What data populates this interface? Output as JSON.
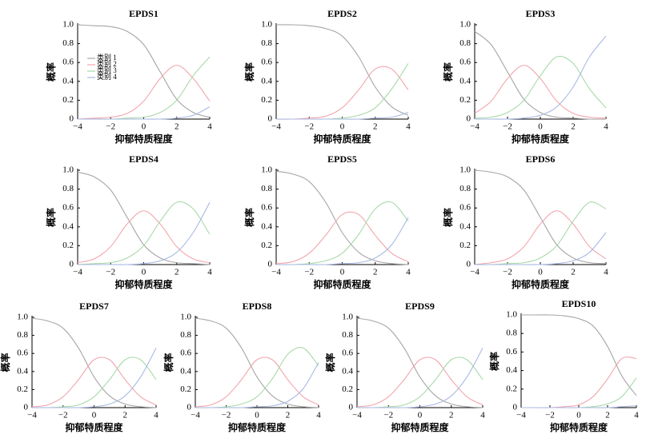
{
  "chart_data": [
    {
      "type": "line",
      "title": "EPDS1",
      "xlabel": "抑郁特质程度",
      "ylabel": "概率",
      "x": [
        -4,
        -3,
        -2,
        -1,
        0,
        1,
        2,
        3,
        4
      ],
      "xlim": [
        -4,
        4
      ],
      "ylim": [
        0,
        1
      ],
      "xticks": [
        {
          "value": -4,
          "label": "−4"
        },
        {
          "value": -2,
          "label": "−2"
        },
        0,
        2,
        4
      ],
      "yticks": [
        0,
        0.2,
        0.4,
        0.6,
        0.8,
        {
          "value": 1,
          "label": "1.0"
        }
      ],
      "series": [
        {
          "name": "类别 1",
          "color": "#a6a6a6",
          "values": [
            1,
            0.99,
            0.98,
            0.93,
            0.79,
            0.5,
            0.21,
            0.07,
            0.02
          ]
        },
        {
          "name": "类别 2",
          "color": "#f2a5ad",
          "values": [
            0,
            0.01,
            0.02,
            0.06,
            0.19,
            0.43,
            0.57,
            0.43,
            0.19
          ]
        },
        {
          "name": "类别 3",
          "color": "#a9d9a9",
          "values": [
            0,
            0,
            0,
            0.01,
            0.02,
            0.07,
            0.2,
            0.46,
            0.66
          ]
        },
        {
          "name": "类别 4",
          "color": "#a9b9e3",
          "values": [
            0,
            0,
            0,
            0,
            0,
            0,
            0.01,
            0.04,
            0.13
          ]
        }
      ]
    },
    {
      "type": "line",
      "title": "EPDS2",
      "xlabel": "抑郁特质程度",
      "ylabel": "概率",
      "x": [
        -4,
        -3,
        -2,
        -1,
        0,
        1,
        2,
        3,
        4
      ],
      "xlim": [
        -4,
        4
      ],
      "ylim": [
        0,
        1
      ],
      "xticks": [
        {
          "value": -4,
          "label": "−4"
        },
        {
          "value": -2,
          "label": "−2"
        },
        0,
        2,
        4
      ],
      "yticks": [
        0,
        0.2,
        0.4,
        0.6,
        0.8,
        {
          "value": 1,
          "label": "1.0"
        }
      ],
      "series": [
        {
          "color": "#a6a6a6",
          "values": [
            1,
            1,
            0.99,
            0.96,
            0.88,
            0.66,
            0.34,
            0.13,
            0.04
          ]
        },
        {
          "color": "#f2a5ad",
          "values": [
            0,
            0,
            0.01,
            0.03,
            0.12,
            0.31,
            0.53,
            0.53,
            0.31
          ]
        },
        {
          "color": "#a9d9a9",
          "values": [
            0,
            0,
            0,
            0,
            0.01,
            0.04,
            0.12,
            0.32,
            0.59
          ]
        },
        {
          "color": "#a9b9e3",
          "values": [
            0,
            0,
            0,
            0,
            0,
            0,
            0.01,
            0.02,
            0.07
          ]
        }
      ]
    },
    {
      "type": "line",
      "title": "EPDS3",
      "xlabel": "抑郁特质程度",
      "ylabel": "概率",
      "x": [
        -4,
        -3,
        -2,
        -1,
        0,
        1,
        2,
        3,
        4
      ],
      "xlim": [
        -4,
        4
      ],
      "ylim": [
        0,
        1
      ],
      "xticks": [
        {
          "value": -4,
          "label": "−4"
        },
        {
          "value": -2,
          "label": "−2"
        },
        0,
        2,
        4
      ],
      "yticks": [
        0,
        0.2,
        0.4,
        0.6,
        0.8,
        {
          "value": 1,
          "label": "1.0"
        }
      ],
      "series": [
        {
          "color": "#a6a6a6",
          "values": [
            0.93,
            0.79,
            0.5,
            0.21,
            0.07,
            0.02,
            0.01,
            0,
            0
          ]
        },
        {
          "color": "#f2a5ad",
          "values": [
            0.06,
            0.19,
            0.43,
            0.57,
            0.43,
            0.19,
            0.06,
            0.02,
            0.01
          ]
        },
        {
          "color": "#a9d9a9",
          "values": [
            0.01,
            0.02,
            0.07,
            0.2,
            0.46,
            0.66,
            0.59,
            0.32,
            0.12
          ]
        },
        {
          "color": "#a9b9e3",
          "values": [
            0,
            0,
            0,
            0.01,
            0.04,
            0.13,
            0.34,
            0.66,
            0.88
          ]
        }
      ]
    },
    {
      "type": "line",
      "title": "EPDS4",
      "xlabel": "抑郁特质程度",
      "ylabel": "概率",
      "x": [
        -4,
        -3,
        -2,
        -1,
        0,
        1,
        2,
        3,
        4
      ],
      "xlim": [
        -4,
        4
      ],
      "ylim": [
        0,
        1
      ],
      "xticks": [
        {
          "value": -4,
          "label": "−4"
        },
        {
          "value": -2,
          "label": "−2"
        },
        0,
        2,
        4
      ],
      "yticks": [
        0,
        0.2,
        0.4,
        0.6,
        0.8,
        {
          "value": 1,
          "label": "1.0"
        }
      ],
      "series": [
        {
          "color": "#a6a6a6",
          "values": [
            0.98,
            0.93,
            0.79,
            0.5,
            0.21,
            0.07,
            0.02,
            0.01,
            0
          ]
        },
        {
          "color": "#f2a5ad",
          "values": [
            0.02,
            0.06,
            0.19,
            0.43,
            0.57,
            0.43,
            0.19,
            0.06,
            0.02
          ]
        },
        {
          "color": "#a9d9a9",
          "values": [
            0,
            0.01,
            0.02,
            0.07,
            0.2,
            0.46,
            0.66,
            0.59,
            0.32
          ]
        },
        {
          "color": "#a9b9e3",
          "values": [
            0,
            0,
            0,
            0,
            0.01,
            0.04,
            0.13,
            0.34,
            0.66
          ]
        }
      ]
    },
    {
      "type": "line",
      "title": "EPDS5",
      "xlabel": "抑郁特质程度",
      "ylabel": "概率",
      "x": [
        -4,
        -3,
        -2,
        -1,
        0,
        1,
        2,
        3,
        4
      ],
      "xlim": [
        -4,
        4
      ],
      "ylim": [
        0,
        1
      ],
      "xticks": [
        {
          "value": -4,
          "label": "−4"
        },
        {
          "value": -2,
          "label": "−2"
        },
        0,
        2,
        4
      ],
      "yticks": [
        0,
        0.2,
        0.4,
        0.6,
        0.8,
        {
          "value": 1,
          "label": "1.0"
        }
      ],
      "series": [
        {
          "color": "#a6a6a6",
          "values": [
            0.99,
            0.96,
            0.88,
            0.66,
            0.34,
            0.13,
            0.04,
            0.01,
            0
          ]
        },
        {
          "color": "#f2a5ad",
          "values": [
            0.01,
            0.03,
            0.12,
            0.31,
            0.53,
            0.53,
            0.31,
            0.12,
            0.03
          ]
        },
        {
          "color": "#a9d9a9",
          "values": [
            0,
            0,
            0.01,
            0.04,
            0.12,
            0.32,
            0.59,
            0.66,
            0.46
          ]
        },
        {
          "color": "#a9b9e3",
          "values": [
            0,
            0,
            0,
            0,
            0.01,
            0.02,
            0.07,
            0.21,
            0.5
          ]
        }
      ]
    },
    {
      "type": "line",
      "title": "EPDS6",
      "xlabel": "抑郁特质程度",
      "ylabel": "概率",
      "x": [
        -4,
        -3,
        -2,
        -1,
        0,
        1,
        2,
        3,
        4
      ],
      "xlim": [
        -4,
        4
      ],
      "ylim": [
        0,
        1
      ],
      "xticks": [
        {
          "value": -4,
          "label": "−4"
        },
        {
          "value": -2,
          "label": "−2"
        },
        0,
        2,
        4
      ],
      "yticks": [
        0,
        0.2,
        0.4,
        0.6,
        0.8,
        {
          "value": 1,
          "label": "1.0"
        }
      ],
      "series": [
        {
          "color": "#a6a6a6",
          "values": [
            1,
            0.98,
            0.93,
            0.79,
            0.5,
            0.21,
            0.07,
            0.02,
            0.01
          ]
        },
        {
          "color": "#f2a5ad",
          "values": [
            0,
            0.02,
            0.06,
            0.19,
            0.43,
            0.57,
            0.43,
            0.19,
            0.06
          ]
        },
        {
          "color": "#a9d9a9",
          "values": [
            0,
            0,
            0.01,
            0.02,
            0.07,
            0.2,
            0.46,
            0.66,
            0.59
          ]
        },
        {
          "color": "#a9b9e3",
          "values": [
            0,
            0,
            0,
            0,
            0,
            0.01,
            0.04,
            0.13,
            0.34
          ]
        }
      ]
    },
    {
      "type": "line",
      "title": "EPDS7",
      "xlabel": "抑郁特质程度",
      "ylabel": "概率",
      "x": [
        -4,
        -3,
        -2,
        -1,
        0,
        1,
        2,
        3,
        4
      ],
      "xlim": [
        -4,
        4
      ],
      "ylim": [
        0,
        1
      ],
      "xticks": [
        {
          "value": -4,
          "label": "−4"
        },
        {
          "value": -2,
          "label": "−2"
        },
        0,
        2,
        4
      ],
      "yticks": [
        0,
        0.2,
        0.4,
        0.6,
        0.8,
        {
          "value": 1,
          "label": "1.0"
        }
      ],
      "series": [
        {
          "color": "#a6a6a6",
          "values": [
            0.99,
            0.96,
            0.88,
            0.66,
            0.34,
            0.13,
            0.04,
            0.01,
            0
          ]
        },
        {
          "color": "#f2a5ad",
          "values": [
            0.01,
            0.03,
            0.12,
            0.31,
            0.53,
            0.53,
            0.31,
            0.12,
            0.03
          ]
        },
        {
          "color": "#a9d9a9",
          "values": [
            0,
            0,
            0.01,
            0.03,
            0.12,
            0.31,
            0.53,
            0.53,
            0.31
          ]
        },
        {
          "color": "#a9b9e3",
          "values": [
            0,
            0,
            0,
            0,
            0.01,
            0.04,
            0.13,
            0.34,
            0.66
          ]
        }
      ]
    },
    {
      "type": "line",
      "title": "EPDS8",
      "xlabel": "抑郁特质程度",
      "ylabel": "概率",
      "x": [
        -4,
        -3,
        -2,
        -1,
        0,
        1,
        2,
        3,
        4
      ],
      "xlim": [
        -4,
        4
      ],
      "ylim": [
        0,
        1
      ],
      "xticks": [
        {
          "value": -4,
          "label": "−4"
        },
        {
          "value": -2,
          "label": "−2"
        },
        0,
        2,
        4
      ],
      "yticks": [
        0,
        0.2,
        0.4,
        0.6,
        0.8,
        {
          "value": 1,
          "label": "1.0"
        }
      ],
      "series": [
        {
          "color": "#a6a6a6",
          "values": [
            0.99,
            0.96,
            0.88,
            0.66,
            0.34,
            0.13,
            0.04,
            0.01,
            0
          ]
        },
        {
          "color": "#f2a5ad",
          "values": [
            0.01,
            0.03,
            0.12,
            0.31,
            0.53,
            0.53,
            0.31,
            0.12,
            0.03
          ]
        },
        {
          "color": "#a9d9a9",
          "values": [
            0,
            0,
            0.01,
            0.04,
            0.12,
            0.32,
            0.59,
            0.66,
            0.46
          ]
        },
        {
          "color": "#a9b9e3",
          "values": [
            0,
            0,
            0,
            0,
            0.01,
            0.02,
            0.07,
            0.21,
            0.5
          ]
        }
      ]
    },
    {
      "type": "line",
      "title": "EPDS9",
      "xlabel": "抑郁特质程度",
      "ylabel": "概率",
      "x": [
        -4,
        -3,
        -2,
        -1,
        0,
        1,
        2,
        3,
        4
      ],
      "xlim": [
        -4,
        4
      ],
      "ylim": [
        0,
        1
      ],
      "xticks": [
        {
          "value": -4,
          "label": "−4"
        },
        {
          "value": -2,
          "label": "−2"
        },
        0,
        2,
        4
      ],
      "yticks": [
        0,
        0.2,
        0.4,
        0.6,
        0.8,
        {
          "value": 1,
          "label": "1.0"
        }
      ],
      "series": [
        {
          "color": "#a6a6a6",
          "values": [
            0.99,
            0.96,
            0.88,
            0.66,
            0.34,
            0.13,
            0.04,
            0.01,
            0
          ]
        },
        {
          "color": "#f2a5ad",
          "values": [
            0.01,
            0.03,
            0.12,
            0.31,
            0.53,
            0.53,
            0.31,
            0.12,
            0.03
          ]
        },
        {
          "color": "#a9d9a9",
          "values": [
            0,
            0,
            0.01,
            0.03,
            0.12,
            0.31,
            0.53,
            0.53,
            0.31
          ]
        },
        {
          "color": "#a9b9e3",
          "values": [
            0,
            0,
            0,
            0,
            0.01,
            0.04,
            0.13,
            0.34,
            0.66
          ]
        }
      ]
    },
    {
      "type": "line",
      "title": "EPDS10",
      "xlabel": "抑郁特质程度",
      "ylabel": "概率",
      "x": [
        -4,
        -3,
        -2,
        -1,
        0,
        1,
        2,
        3,
        4
      ],
      "xlim": [
        -4,
        4
      ],
      "ylim": [
        0,
        1
      ],
      "xticks": [
        {
          "value": -4,
          "label": "−4"
        },
        {
          "value": -2,
          "label": "−2"
        },
        0,
        2,
        4
      ],
      "yticks": [
        0,
        0.2,
        0.4,
        0.6,
        0.8,
        {
          "value": 1,
          "label": "1.0"
        }
      ],
      "series": [
        {
          "color": "#a6a6a6",
          "values": [
            1,
            1,
            1,
            0.99,
            0.96,
            0.88,
            0.66,
            0.34,
            0.13
          ]
        },
        {
          "color": "#f2a5ad",
          "values": [
            0,
            0,
            0,
            0.01,
            0.03,
            0.12,
            0.31,
            0.53,
            0.53
          ]
        },
        {
          "color": "#a9d9a9",
          "values": [
            0,
            0,
            0,
            0,
            0,
            0.01,
            0.04,
            0.12,
            0.32
          ]
        },
        {
          "color": "#a9b9e3",
          "values": [
            0,
            0,
            0,
            0,
            0,
            0,
            0,
            0.01,
            0.02
          ]
        }
      ]
    }
  ]
}
